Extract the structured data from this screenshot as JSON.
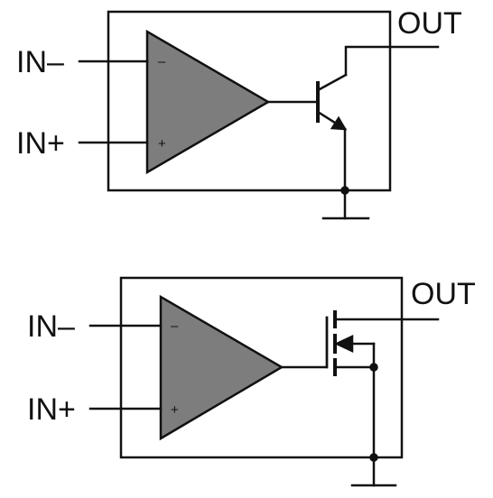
{
  "colors": {
    "stroke": "#111111",
    "amp_fill": "#7d7d7d",
    "background": "#ffffff"
  },
  "top_circuit": {
    "input_minus_label": "IN–",
    "input_plus_label": "IN+",
    "output_label": "OUT",
    "inverting_sign": "–",
    "noninverting_sign": "+",
    "output_device": "npn-transistor"
  },
  "bottom_circuit": {
    "input_minus_label": "IN–",
    "input_plus_label": "IN+",
    "output_label": "OUT",
    "inverting_sign": "–",
    "noninverting_sign": "+",
    "output_device": "n-channel-mosfet"
  }
}
